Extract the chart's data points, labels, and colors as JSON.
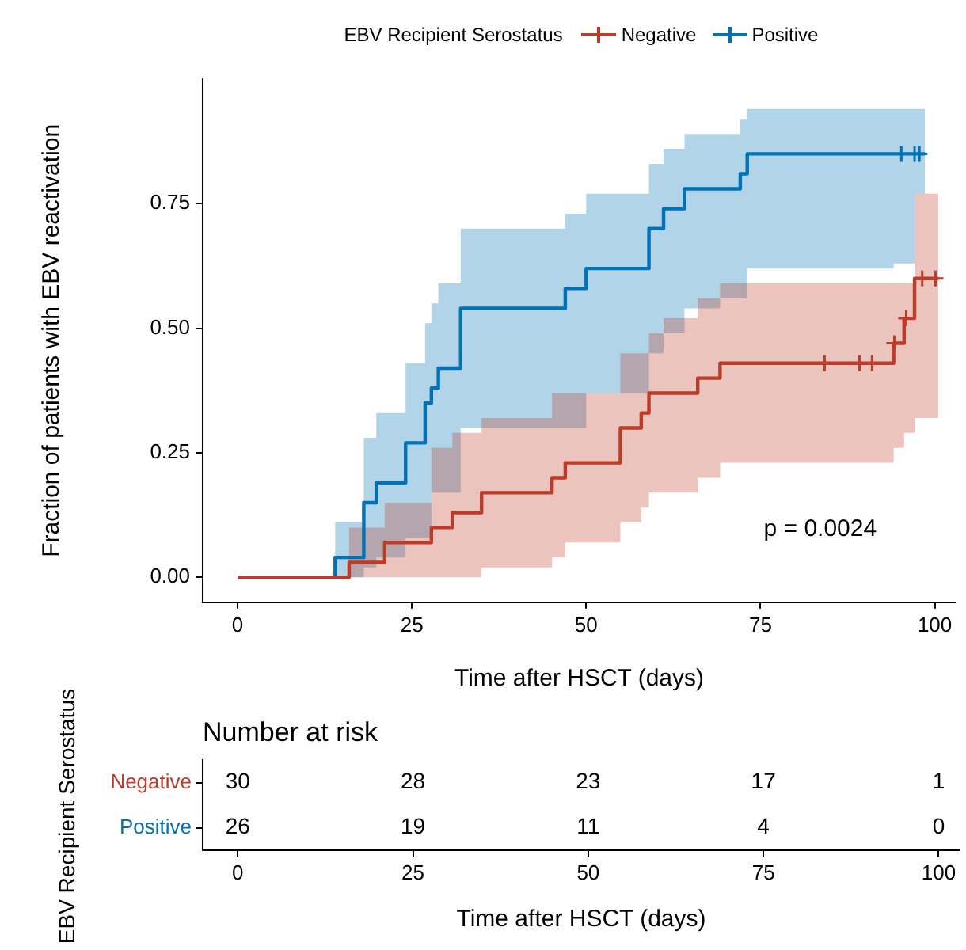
{
  "chart_data": [
    {
      "type": "step",
      "legend_title": "EBV Recipient Serostatus",
      "legend": "top",
      "xlabel": "Time after HSCT (days)",
      "ylabel": "Fraction of patients with EBV reactivation",
      "xlim": [
        -5,
        103
      ],
      "xticks": [
        0,
        25,
        50,
        75,
        100
      ],
      "ylim": [
        -0.05,
        1.0
      ],
      "yticks": [
        {
          "value": 0,
          "label": "0.00"
        },
        {
          "value": 0.25,
          "label": "0.25"
        },
        {
          "value": 0.5,
          "label": "0.50"
        },
        {
          "value": 0.75,
          "label": "0.75"
        }
      ],
      "annotations": [
        "p = 0.0024"
      ],
      "marker": "none",
      "series": [
        {
          "name": "Negative",
          "color": "#bc3c29",
          "x": [
            0,
            16,
            21.1,
            27.8,
            30.8,
            35,
            45.1,
            47,
            54.9,
            57.9,
            59,
            61.1,
            66,
            69.2,
            94.1,
            95.6,
            97.1,
            100.5
          ],
          "values": [
            0,
            0.03,
            0.07,
            0.1,
            0.13,
            0.17,
            0.2,
            0.23,
            0.3,
            0.33,
            0.37,
            0.37,
            0.4,
            0.43,
            0.47,
            0.52,
            0.6,
            0.6
          ],
          "lower": [
            0,
            0,
            0,
            0,
            0,
            0.02,
            0.04,
            0.07,
            0.11,
            0.14,
            0.17,
            0.17,
            0.2,
            0.23,
            0.26,
            0.29,
            0.32,
            0.32
          ],
          "upper": [
            0,
            0.1,
            0.15,
            0.26,
            0.29,
            0.32,
            0.37,
            0.37,
            0.45,
            0.45,
            0.49,
            0.52,
            0.56,
            0.59,
            0.59,
            0.59,
            0.77,
            0.77
          ]
        },
        {
          "name": "Positive",
          "color": "#0072b5",
          "x": [
            0,
            14,
            18.1,
            19.9,
            24.1,
            26.9,
            27.8,
            28.8,
            32,
            47,
            50,
            59,
            61.1,
            64.1,
            69.2,
            72.1,
            73.1,
            94.1,
            97.1,
            98.6
          ],
          "values": [
            0,
            0.04,
            0.15,
            0.19,
            0.27,
            0.35,
            0.38,
            0.42,
            0.54,
            0.58,
            0.62,
            0.7,
            0.74,
            0.78,
            0.78,
            0.81,
            0.85,
            0.85,
            0.85,
            0.85
          ],
          "lower": [
            0,
            0,
            0.02,
            0.04,
            0.08,
            0.08,
            0.17,
            0.17,
            0.3,
            0.3,
            0.37,
            0.45,
            0.49,
            0.54,
            0.56,
            0.56,
            0.62,
            0.63,
            0.77,
            0.77
          ],
          "upper": [
            0,
            0.11,
            0.28,
            0.33,
            0.43,
            0.51,
            0.55,
            0.59,
            0.7,
            0.73,
            0.77,
            0.83,
            0.86,
            0.89,
            0.89,
            0.92,
            0.94,
            0.94,
            0.94,
            0.94
          ]
        },
        {
          "type": "scatter",
          "marker": "cross",
          "color": "#bc3c29",
          "x": [
            84.2,
            89.2,
            91.0,
            94.2,
            95.9,
            98.2,
            100.1
          ],
          "values": [
            0.43,
            0.43,
            0.43,
            0.47,
            0.52,
            0.6,
            0.6
          ]
        },
        {
          "type": "scatter",
          "marker": "cross",
          "color": "#0072b5",
          "x": [
            95.2,
            97.1,
            97.8
          ],
          "values": [
            0.85,
            0.85,
            0.85
          ]
        }
      ]
    },
    {
      "type": "heatmap",
      "title": "Number at risk",
      "xlabel": "Time after HSCT (days)",
      "ylabel": "EBV Recipient Serostatus",
      "categories": [
        "0",
        "25",
        "50",
        "75",
        "100"
      ],
      "y_categories": [
        "Negative",
        "Positive"
      ],
      "data_labels": true,
      "cells": [
        [
          30,
          28,
          23,
          17,
          1
        ],
        [
          26,
          19,
          11,
          4,
          0
        ]
      ]
    }
  ]
}
